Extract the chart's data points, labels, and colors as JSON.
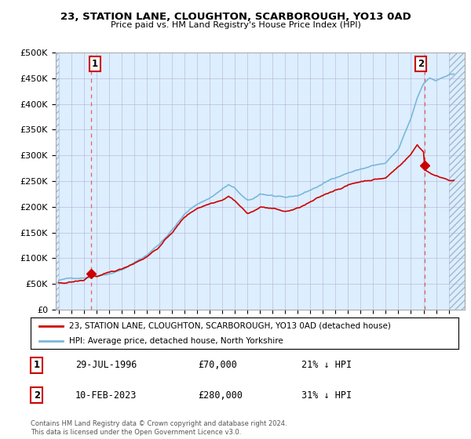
{
  "title": "23, STATION LANE, CLOUGHTON, SCARBOROUGH, YO13 0AD",
  "subtitle": "Price paid vs. HM Land Registry's House Price Index (HPI)",
  "legend_line1": "23, STATION LANE, CLOUGHTON, SCARBOROUGH, YO13 0AD (detached house)",
  "legend_line2": "HPI: Average price, detached house, North Yorkshire",
  "footnote": "Contains HM Land Registry data © Crown copyright and database right 2024.\nThis data is licensed under the Open Government Licence v3.0.",
  "annotation1_label": "1",
  "annotation1_date": "29-JUL-1996",
  "annotation1_price": "£70,000",
  "annotation1_hpi": "21% ↓ HPI",
  "annotation2_label": "2",
  "annotation2_date": "10-FEB-2023",
  "annotation2_price": "£280,000",
  "annotation2_hpi": "31% ↓ HPI",
  "sale1_x": 1996.57,
  "sale1_y": 70000,
  "sale2_x": 2023.11,
  "sale2_y": 280000,
  "hpi_color": "#7ab8d9",
  "price_color": "#cc0000",
  "dashed_line_color": "#e06060",
  "chart_bg_color": "#ddeeff",
  "hatch_color": "#c0d4e8",
  "ylim": [
    0,
    500000
  ],
  "xlim_start": 1993.75,
  "xlim_end": 2026.25,
  "yticks": [
    0,
    50000,
    100000,
    150000,
    200000,
    250000,
    300000,
    350000,
    400000,
    450000,
    500000
  ],
  "xticks": [
    1994,
    1995,
    1996,
    1997,
    1998,
    1999,
    2000,
    2001,
    2002,
    2003,
    2004,
    2005,
    2006,
    2007,
    2008,
    2009,
    2010,
    2011,
    2012,
    2013,
    2014,
    2015,
    2016,
    2017,
    2018,
    2019,
    2020,
    2021,
    2022,
    2023,
    2024,
    2025
  ]
}
